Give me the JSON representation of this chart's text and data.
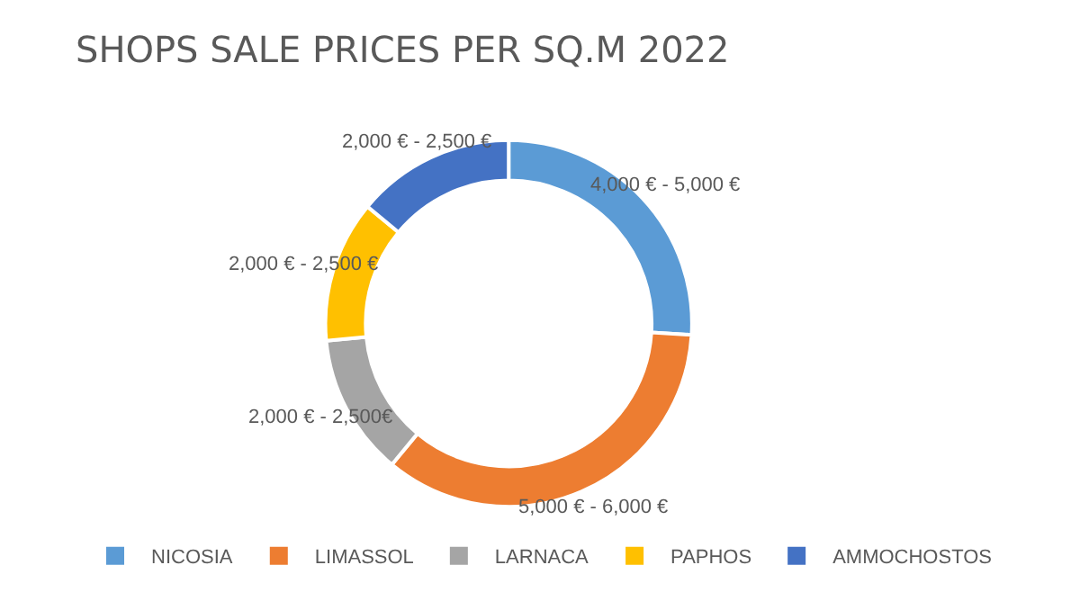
{
  "chart_data": {
    "type": "donut",
    "title": "SHOPS SALE PRICES PER SQ.M 2022",
    "categories": [
      "NICOSIA",
      "LIMASSOL",
      "LARNACA",
      "PAPHOS",
      "AMMOCHOSTOS"
    ],
    "values": [
      26,
      35,
      12.5,
      12.5,
      14
    ],
    "colors": [
      "#5b9bd5",
      "#ed7d31",
      "#a5a5a5",
      "#ffc000",
      "#4472c4"
    ],
    "annotations": [
      "4,000 € - 5,000 €",
      "5,000 € - 6,000 €",
      "2,000 € - 2,500€",
      "2,000 € - 2,500 €",
      "2,000 € - 2,500 €"
    ],
    "legend": "bottom"
  }
}
